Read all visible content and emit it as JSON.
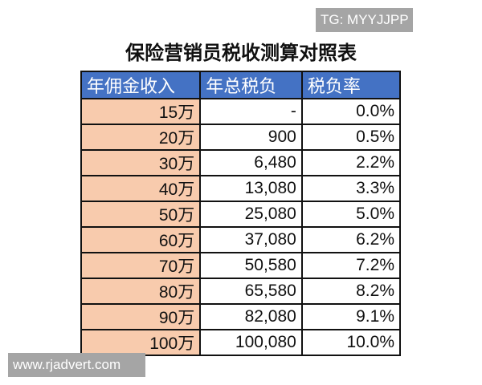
{
  "watermark_top": "TG: MYYJJPP",
  "title": "保险营销员税收测算对照表",
  "table": {
    "headers": [
      "年佣金收入",
      "年总税负",
      "税负率"
    ],
    "rows": [
      [
        "15万",
        "-",
        "0.0%"
      ],
      [
        "20万",
        "900",
        "0.5%"
      ],
      [
        "30万",
        "6,480",
        "2.2%"
      ],
      [
        "40万",
        "13,080",
        "3.3%"
      ],
      [
        "50万",
        "25,080",
        "5.0%"
      ],
      [
        "60万",
        "37,080",
        "6.2%"
      ],
      [
        "70万",
        "50,580",
        "7.2%"
      ],
      [
        "80万",
        "65,580",
        "8.2%"
      ],
      [
        "90万",
        "82,080",
        "9.1%"
      ],
      [
        "100万",
        "100,080",
        "10.0%"
      ]
    ]
  },
  "watermark_bottom": "www.rjadvert.com",
  "colors": {
    "header_bg": "#4472c4",
    "income_bg": "#f8cbad",
    "watermark_bg": "#a5a5a5"
  }
}
